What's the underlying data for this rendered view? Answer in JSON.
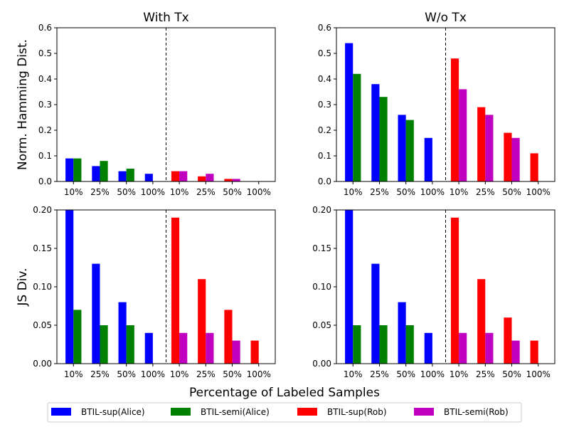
{
  "figure": {
    "xlabel": "Percentage of Labeled Samples",
    "colors": {
      "sup_alice": "#0000ff",
      "semi_alice": "#008000",
      "sup_rob": "#ff0000",
      "semi_rob": "#bf00bf"
    }
  },
  "legend": {
    "items": [
      {
        "label": "BTIL-sup(Alice)",
        "color": "#0000ff"
      },
      {
        "label": "BTIL-semi(Alice)",
        "color": "#008000"
      },
      {
        "label": "BTIL-sup(Rob)",
        "color": "#ff0000"
      },
      {
        "label": "BTIL-semi(Rob)",
        "color": "#bf00bf"
      }
    ]
  },
  "chart_data": [
    {
      "type": "bar",
      "title": "With Tx",
      "ylabel": "Norm. Hamming Dist.",
      "ylim": [
        0,
        0.6
      ],
      "yticks": [
        "0.0",
        "0.1",
        "0.2",
        "0.3",
        "0.4",
        "0.5",
        "0.6"
      ],
      "categories": [
        "10%",
        "25%",
        "50%",
        "100%",
        "10%",
        "25%",
        "50%",
        "100%"
      ],
      "series": [
        {
          "name": "BTIL-sup(Alice)",
          "values": [
            0.09,
            0.06,
            0.04,
            0.03,
            null,
            null,
            null,
            null
          ]
        },
        {
          "name": "BTIL-semi(Alice)",
          "values": [
            0.09,
            0.08,
            0.05,
            null,
            null,
            null,
            null,
            null
          ]
        },
        {
          "name": "BTIL-sup(Rob)",
          "values": [
            null,
            null,
            null,
            null,
            0.04,
            0.02,
            0.01,
            null
          ]
        },
        {
          "name": "BTIL-semi(Rob)",
          "values": [
            null,
            null,
            null,
            null,
            0.04,
            0.03,
            0.01,
            null
          ]
        }
      ]
    },
    {
      "type": "bar",
      "title": "W/o Tx",
      "ylabel": "",
      "ylim": [
        0,
        0.6
      ],
      "yticks": [
        "0.0",
        "0.1",
        "0.2",
        "0.3",
        "0.4",
        "0.5",
        "0.6"
      ],
      "categories": [
        "10%",
        "25%",
        "50%",
        "100%",
        "10%",
        "25%",
        "50%",
        "100%"
      ],
      "series": [
        {
          "name": "BTIL-sup(Alice)",
          "values": [
            0.54,
            0.38,
            0.26,
            0.17,
            null,
            null,
            null,
            null
          ]
        },
        {
          "name": "BTIL-semi(Alice)",
          "values": [
            0.42,
            0.33,
            0.24,
            null,
            null,
            null,
            null,
            null
          ]
        },
        {
          "name": "BTIL-sup(Rob)",
          "values": [
            null,
            null,
            null,
            null,
            0.48,
            0.29,
            0.19,
            0.11
          ]
        },
        {
          "name": "BTIL-semi(Rob)",
          "values": [
            null,
            null,
            null,
            null,
            0.36,
            0.26,
            0.17,
            null
          ]
        }
      ]
    },
    {
      "type": "bar",
      "title": "",
      "ylabel": "JS Div.",
      "ylim": [
        0,
        0.2
      ],
      "yticks": [
        "0.00",
        "0.05",
        "0.10",
        "0.15",
        "0.20"
      ],
      "categories": [
        "10%",
        "25%",
        "50%",
        "100%",
        "10%",
        "25%",
        "50%",
        "100%"
      ],
      "series": [
        {
          "name": "BTIL-sup(Alice)",
          "values": [
            0.2,
            0.13,
            0.08,
            0.04,
            null,
            null,
            null,
            null
          ]
        },
        {
          "name": "BTIL-semi(Alice)",
          "values": [
            0.07,
            0.05,
            0.05,
            null,
            null,
            null,
            null,
            null
          ]
        },
        {
          "name": "BTIL-sup(Rob)",
          "values": [
            null,
            null,
            null,
            null,
            0.19,
            0.11,
            0.07,
            0.03
          ]
        },
        {
          "name": "BTIL-semi(Rob)",
          "values": [
            null,
            null,
            null,
            null,
            0.04,
            0.04,
            0.03,
            null
          ]
        }
      ]
    },
    {
      "type": "bar",
      "title": "",
      "ylabel": "",
      "ylim": [
        0,
        0.2
      ],
      "yticks": [
        "0.00",
        "0.05",
        "0.10",
        "0.15",
        "0.20"
      ],
      "categories": [
        "10%",
        "25%",
        "50%",
        "100%",
        "10%",
        "25%",
        "50%",
        "100%"
      ],
      "series": [
        {
          "name": "BTIL-sup(Alice)",
          "values": [
            0.2,
            0.13,
            0.08,
            0.04,
            null,
            null,
            null,
            null
          ]
        },
        {
          "name": "BTIL-semi(Alice)",
          "values": [
            0.05,
            0.05,
            0.05,
            null,
            null,
            null,
            null,
            null
          ]
        },
        {
          "name": "BTIL-sup(Rob)",
          "values": [
            null,
            null,
            null,
            null,
            0.19,
            0.11,
            0.06,
            0.03
          ]
        },
        {
          "name": "BTIL-semi(Rob)",
          "values": [
            null,
            null,
            null,
            null,
            0.04,
            0.04,
            0.03,
            null
          ]
        }
      ]
    }
  ]
}
